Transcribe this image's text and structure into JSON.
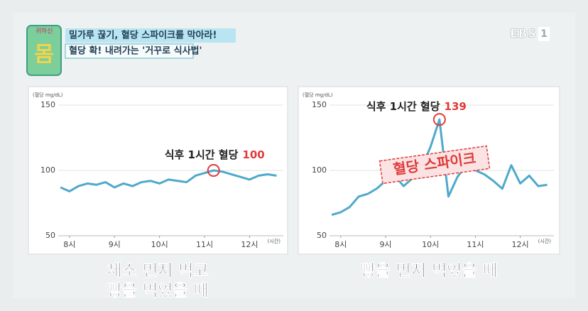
{
  "header": {
    "logo": [
      "귀하신",
      "몸"
    ],
    "title": "밀가루 끊기, 혈당 스파이크를 막아라!",
    "subtitle": "혈당 확! 내려가는 '거꾸로 식사법'",
    "channel": "EBS",
    "channel_number": "1"
  },
  "chart_data": [
    {
      "type": "line",
      "y_label": "(혈당 mg/dL)",
      "x_unit": "(시간)",
      "x": [
        7.8,
        8.0,
        8.2,
        8.4,
        8.6,
        8.8,
        9.0,
        9.2,
        9.4,
        9.6,
        9.8,
        10.0,
        10.2,
        10.4,
        10.6,
        10.8,
        11.0,
        11.2,
        11.4,
        11.6,
        11.8,
        12.0,
        12.2,
        12.4,
        12.6
      ],
      "series": [
        {
          "color": "#4fa9cb",
          "values": [
            87,
            84,
            88,
            90,
            89,
            91,
            87,
            90,
            88,
            91,
            92,
            90,
            93,
            92,
            91,
            96,
            98,
            100,
            99,
            97,
            95,
            93,
            96,
            97,
            96
          ]
        }
      ],
      "xlim": [
        7.75,
        12.75
      ],
      "ylim": [
        50,
        150
      ],
      "yticks": [
        50,
        100,
        150
      ],
      "xticks": [
        {
          "value": 8,
          "label": "8시"
        },
        {
          "value": 9,
          "label": "9시"
        },
        {
          "value": 10,
          "label": "10시"
        },
        {
          "value": 11,
          "label": "11시"
        },
        {
          "value": 12,
          "label": "12시"
        }
      ],
      "grid": true,
      "annotation": {
        "text": "식후 1시간 혈당",
        "value": 100,
        "index": 17
      },
      "caption": [
        "채소 먼저 먹고",
        "빵을 먹었을 때"
      ]
    },
    {
      "type": "line",
      "y_label": "(혈당 mg/dL)",
      "x_unit": "(시간)",
      "x": [
        7.8,
        8.0,
        8.2,
        8.4,
        8.6,
        8.8,
        9.0,
        9.2,
        9.4,
        9.6,
        9.8,
        10.0,
        10.2,
        10.4,
        10.6,
        10.8,
        11.0,
        11.2,
        11.4,
        11.6,
        11.8,
        12.0,
        12.2,
        12.4,
        12.6
      ],
      "series": [
        {
          "color": "#4fa9cb",
          "values": [
            66,
            68,
            72,
            80,
            82,
            86,
            92,
            96,
            88,
            94,
            102,
            118,
            139,
            80,
            95,
            104,
            100,
            97,
            92,
            86,
            104,
            90,
            96,
            88,
            89
          ]
        }
      ],
      "xlim": [
        7.75,
        12.75
      ],
      "ylim": [
        50,
        150
      ],
      "yticks": [
        50,
        100,
        150
      ],
      "xticks": [
        {
          "value": 8,
          "label": "8시"
        },
        {
          "value": 9,
          "label": "9시"
        },
        {
          "value": 10,
          "label": "10시"
        },
        {
          "value": 11,
          "label": "11시"
        },
        {
          "value": 12,
          "label": "12시"
        }
      ],
      "grid": true,
      "annotation": {
        "text": "식후 1시간 혈당",
        "value": 139,
        "index": 12
      },
      "stamp": "혈당 스파이크",
      "caption": [
        "빵을 먼저 먹었을 때"
      ]
    }
  ]
}
